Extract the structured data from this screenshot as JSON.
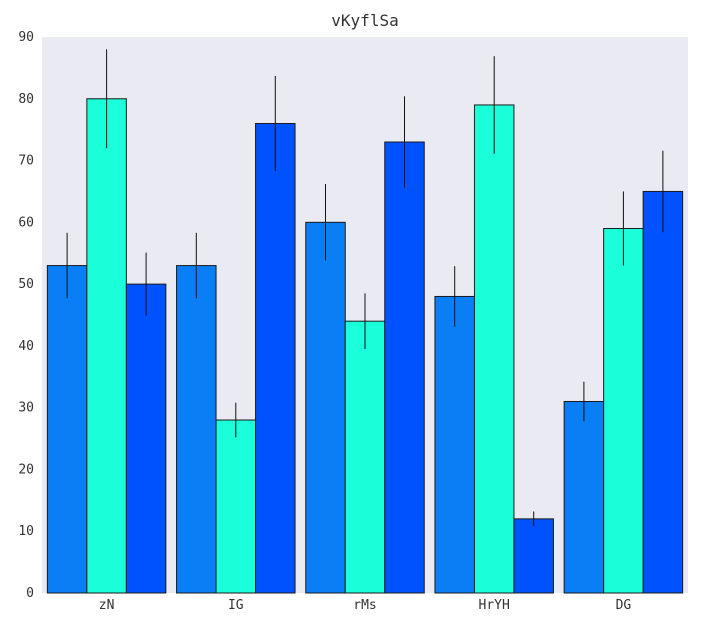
{
  "chart_data": {
    "type": "bar",
    "title": "vKyflSa",
    "xlabel": "",
    "ylabel": "",
    "categories": [
      "zN",
      "IG",
      "rMs",
      "HrYH",
      "DG"
    ],
    "ylim": [
      0,
      90
    ],
    "yticks": [
      0,
      10,
      20,
      30,
      40,
      50,
      60,
      70,
      80,
      90
    ],
    "grid": false,
    "legend": "none",
    "series": [
      {
        "color": "#0a7ff5",
        "values": [
          53,
          53,
          60,
          48,
          31
        ],
        "errors": [
          5.3,
          5.3,
          6.2,
          4.9,
          3.2
        ]
      },
      {
        "color": "#1affd9",
        "values": [
          80,
          28,
          44,
          79,
          59
        ],
        "errors": [
          8.0,
          2.8,
          4.5,
          7.9,
          6.0
        ]
      },
      {
        "color": "#0052ff",
        "values": [
          50,
          76,
          73,
          12,
          65
        ],
        "errors": [
          5.1,
          7.7,
          7.4,
          1.2,
          6.6
        ]
      }
    ]
  }
}
